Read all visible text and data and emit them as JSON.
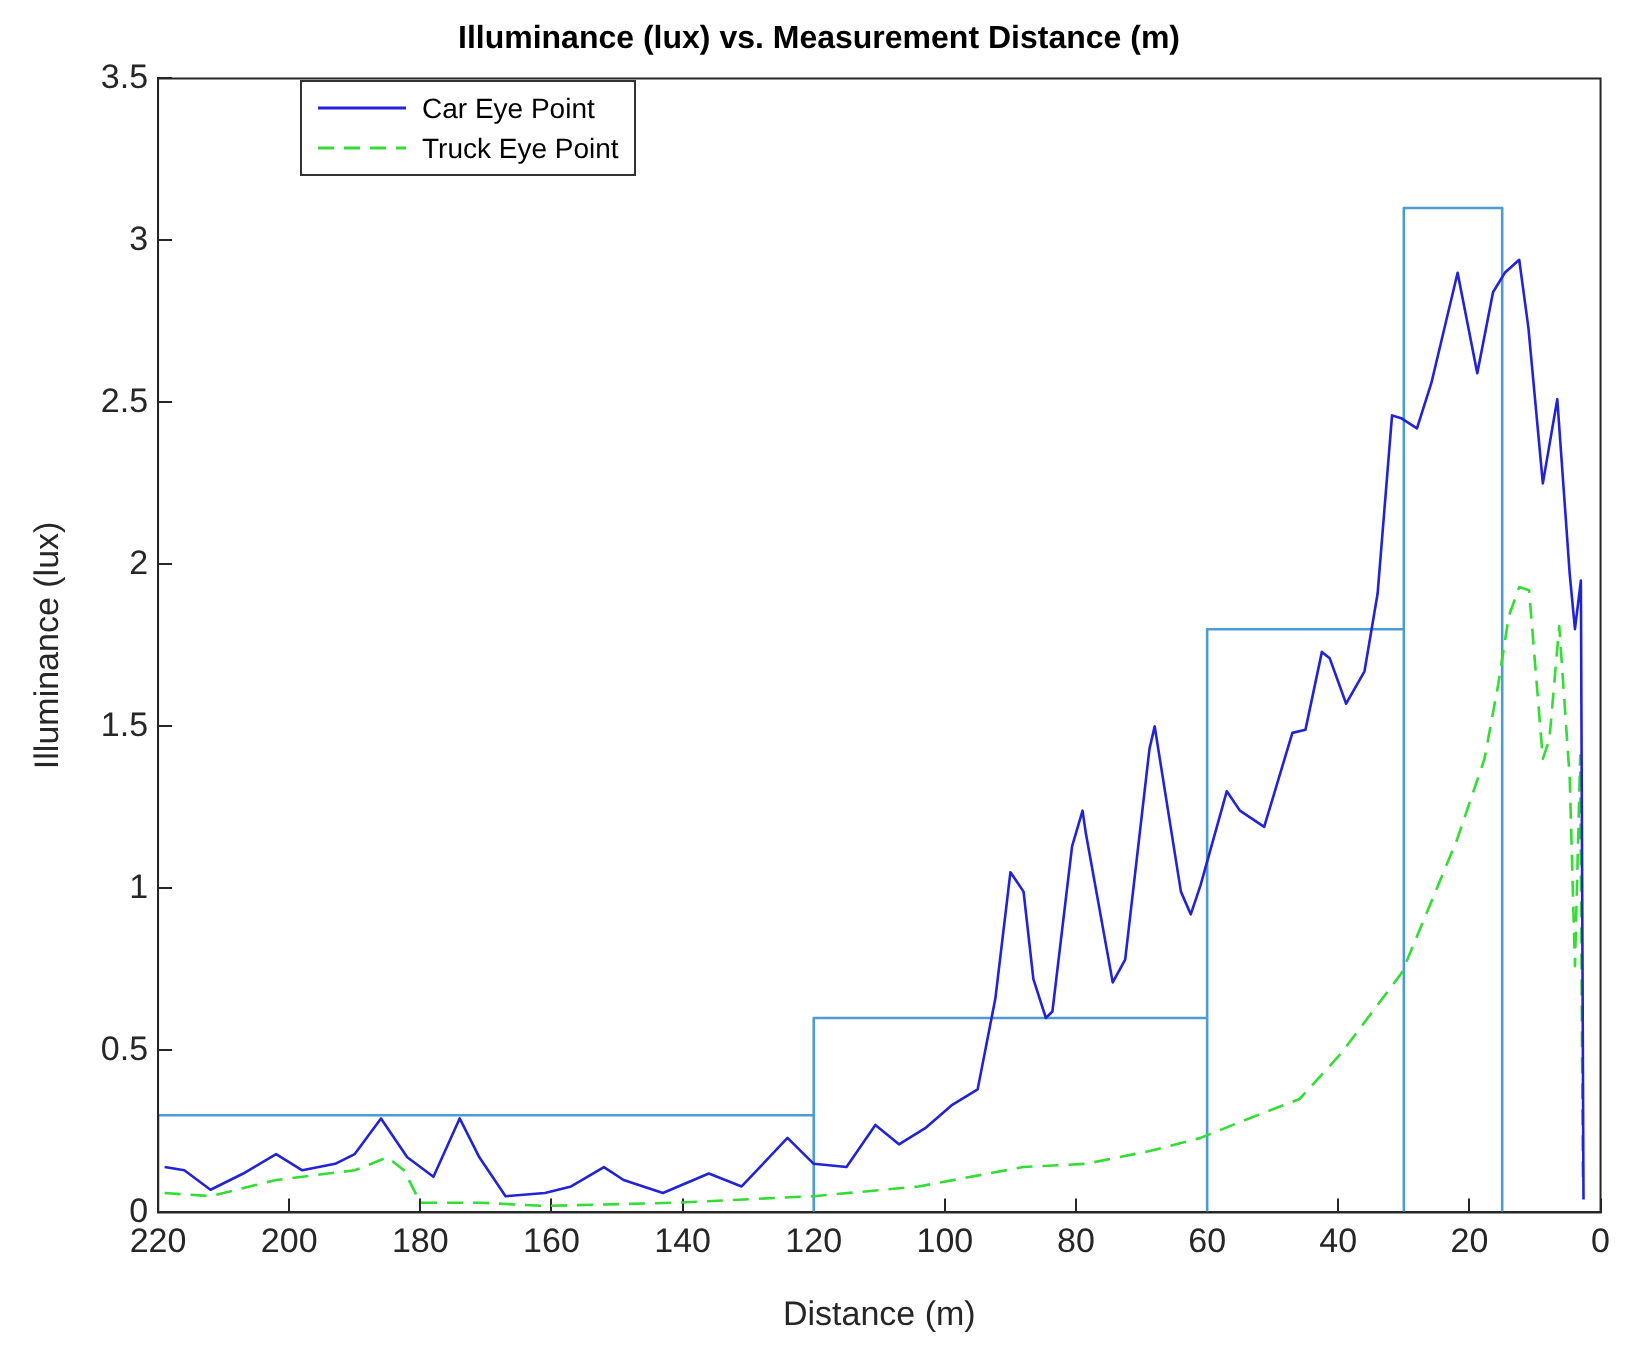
{
  "chart_data": {
    "type": "line",
    "title": "Illuminance (lux) vs. Measurement Distance (m)",
    "xlabel": "Distance (m)",
    "ylabel": "Illuminance (lux)",
    "xlim": [
      220,
      0
    ],
    "xticks": [
      220,
      200,
      180,
      160,
      140,
      120,
      100,
      80,
      60,
      40,
      20,
      0
    ],
    "ylim": [
      0,
      3.5
    ],
    "yticks": [
      0,
      0.5,
      1,
      1.5,
      2,
      2.5,
      3,
      3.5
    ],
    "grid": false,
    "legend": "top left",
    "marker": "none",
    "series": [
      {
        "name": "Car Eye Point",
        "color": "#2323d6",
        "line_style": "solid",
        "x": [
          219,
          216,
          212,
          207,
          202,
          198,
          193,
          190,
          186,
          182,
          178,
          174,
          171,
          167,
          161,
          157,
          152,
          149,
          143,
          136,
          131,
          124,
          120,
          115,
          110.6,
          107,
          103,
          99,
          95,
          92.3,
          90,
          88,
          86.5,
          84.6,
          83.6,
          80.6,
          79,
          78.5,
          74.4,
          72.5,
          68.8,
          68,
          64,
          62.5,
          61,
          57,
          55,
          51.3,
          47,
          45,
          42.5,
          41.3,
          38.8,
          36,
          34,
          31.8,
          30.3,
          28,
          25.8,
          21.8,
          18.8,
          16.4,
          14.6,
          12.4,
          11,
          8.8,
          6.6,
          4.7,
          3.9,
          3,
          2.6
        ],
        "values": [
          0.14,
          0.13,
          0.07,
          0.12,
          0.18,
          0.13,
          0.15,
          0.18,
          0.29,
          0.17,
          0.11,
          0.29,
          0.17,
          0.05,
          0.06,
          0.08,
          0.14,
          0.1,
          0.06,
          0.12,
          0.08,
          0.23,
          0.15,
          0.14,
          0.27,
          0.21,
          0.26,
          0.33,
          0.38,
          0.66,
          1.05,
          0.99,
          0.72,
          0.6,
          0.62,
          1.13,
          1.24,
          1.17,
          0.71,
          0.78,
          1.43,
          1.5,
          0.99,
          0.92,
          1.01,
          1.3,
          1.24,
          1.19,
          1.48,
          1.49,
          1.73,
          1.71,
          1.57,
          1.67,
          1.91,
          2.46,
          2.45,
          2.42,
          2.56,
          2.9,
          2.59,
          2.84,
          2.9,
          2.94,
          2.73,
          2.25,
          2.51,
          1.97,
          1.8,
          1.95,
          0.04
        ]
      },
      {
        "name": "Truck Eye Point",
        "color": "#33dd33",
        "line_style": "dashed",
        "x": [
          219,
          212,
          202,
          190,
          185,
          182.5,
          180,
          171,
          161,
          141,
          120,
          104,
          88,
          78.5,
          68.6,
          61,
          53.6,
          45.9,
          39.6,
          30.3,
          21.9,
          17.7,
          15.6,
          14,
          12.4,
          10.9,
          8.8,
          7.8,
          6.3,
          4.7,
          3.9,
          3.1,
          2.7
        ],
        "values": [
          0.06,
          0.05,
          0.1,
          0.13,
          0.17,
          0.13,
          0.03,
          0.03,
          0.02,
          0.03,
          0.05,
          0.08,
          0.14,
          0.15,
          0.19,
          0.23,
          0.29,
          0.35,
          0.49,
          0.74,
          1.15,
          1.4,
          1.63,
          1.84,
          1.93,
          1.92,
          1.4,
          1.46,
          1.81,
          1.34,
          0.76,
          1.41,
          0.11
        ]
      },
      {
        "color": "#4c9bd4",
        "line_style": "solid",
        "x": [
          220,
          220,
          120,
          120,
          120,
          60,
          60,
          60,
          30,
          30,
          30,
          15,
          15
        ],
        "values": [
          0,
          0.3,
          0.3,
          0,
          0.6,
          0.6,
          0,
          1.8,
          1.8,
          0,
          3.1,
          3.1,
          0
        ]
      }
    ]
  }
}
